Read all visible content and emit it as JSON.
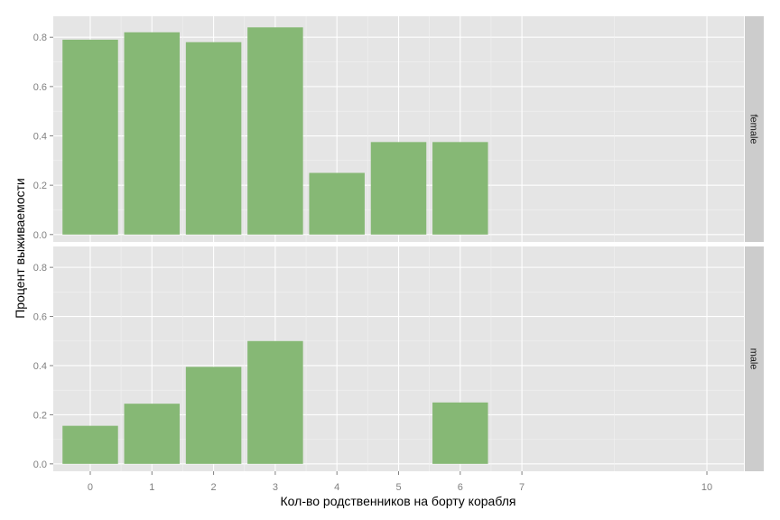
{
  "chart_data": {
    "type": "bar",
    "xlabel": "Кол-во родственников на борту корабля",
    "ylabel": "Процент выживаемости",
    "x_ticks": [
      0,
      1,
      2,
      3,
      4,
      5,
      6,
      7,
      10
    ],
    "y_ticks": [
      0.0,
      0.2,
      0.4,
      0.6,
      0.8
    ],
    "y_tick_labels": [
      "0.0",
      "0.2",
      "0.4",
      "0.6",
      "0.8"
    ],
    "xlim": [
      -0.6,
      10.6
    ],
    "ylim": [
      -0.03,
      0.885
    ],
    "grid": true,
    "bar_color": "#86b875",
    "panel_background": "#e5e5e5",
    "strip_background": "#cccccc",
    "facets": [
      {
        "name": "female",
        "bars": [
          {
            "x": 0,
            "value": 0.79
          },
          {
            "x": 1,
            "value": 0.82
          },
          {
            "x": 2,
            "value": 0.78
          },
          {
            "x": 3,
            "value": 0.84
          },
          {
            "x": 4,
            "value": 0.25
          },
          {
            "x": 5,
            "value": 0.375
          },
          {
            "x": 6,
            "value": 0.375
          }
        ]
      },
      {
        "name": "male",
        "bars": [
          {
            "x": 0,
            "value": 0.155
          },
          {
            "x": 1,
            "value": 0.245
          },
          {
            "x": 2,
            "value": 0.395
          },
          {
            "x": 3,
            "value": 0.5
          },
          {
            "x": 6,
            "value": 0.25
          }
        ]
      }
    ]
  }
}
